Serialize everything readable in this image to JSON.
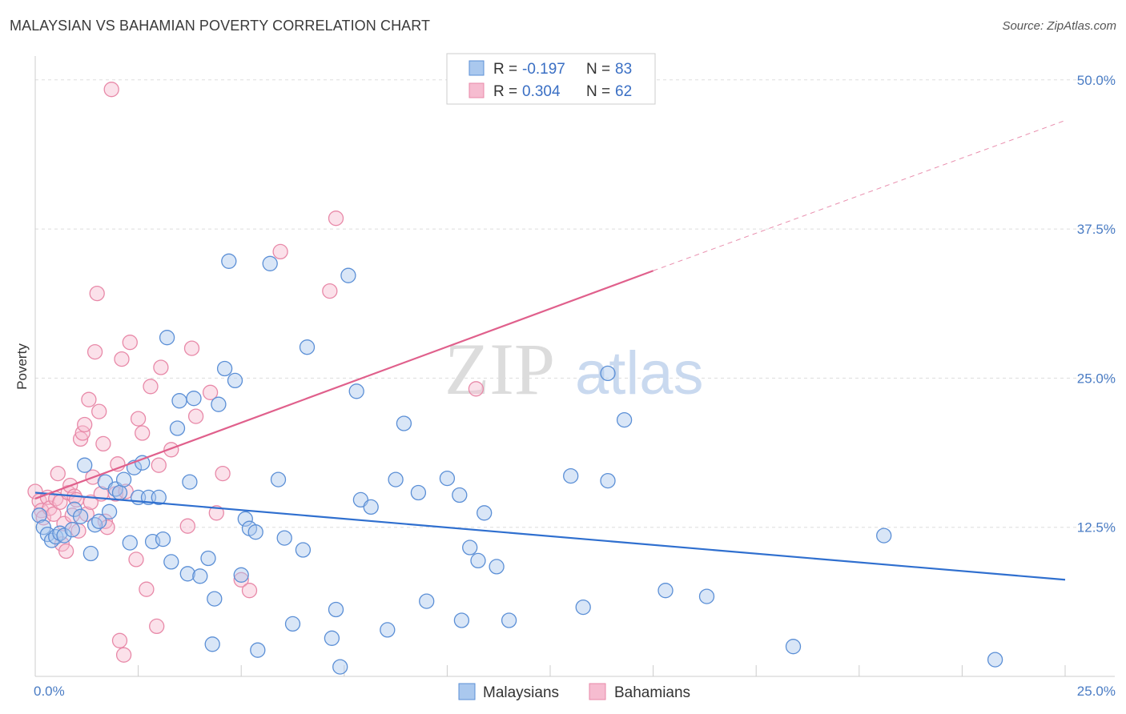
{
  "header": {
    "title": "MALAYSIAN VS BAHAMIAN POVERTY CORRELATION CHART",
    "source": "Source: ZipAtlas.com"
  },
  "colors": {
    "blue_fill": "#aac8ee",
    "blue_stroke": "#5b8fd6",
    "blue_line": "#2f6fcf",
    "pink_fill": "#f6bcd0",
    "pink_stroke": "#e889a8",
    "pink_line": "#e0608c",
    "grid": "#dddddd",
    "tick_text": "#4a7cc4"
  },
  "legend": {
    "blue": {
      "r_label": "R = ",
      "r_value": "-0.197",
      "n_label": "N = ",
      "n_value": "83"
    },
    "pink": {
      "r_label": "R = ",
      "r_value": "0.304",
      "n_label": "N = ",
      "n_value": "62"
    }
  },
  "bottom_legend": {
    "blue": "Malaysians",
    "pink": "Bahamians"
  },
  "watermark": {
    "zip": "ZIP",
    "atlas": "atlas"
  },
  "chart_data": {
    "type": "scatter",
    "xlabel": "",
    "ylabel": "Poverty",
    "xlim": [
      0,
      25
    ],
    "ylim": [
      0,
      52
    ],
    "x_tick_labels": [
      {
        "value": 0,
        "label": "0.0%"
      },
      {
        "value": 25,
        "label": "25.0%"
      }
    ],
    "y_tick_labels": [
      {
        "value": 12.5,
        "label": "12.5%"
      },
      {
        "value": 25,
        "label": "25.0%"
      },
      {
        "value": 37.5,
        "label": "37.5%"
      },
      {
        "value": 50,
        "label": "50.0%"
      }
    ],
    "y_gridlines": [
      12.5,
      25,
      37.5,
      50
    ],
    "x_minor_ticks": [
      2.5,
      5,
      7.5,
      10,
      12.5,
      15,
      17.5,
      20,
      22.5,
      25
    ],
    "series": [
      {
        "name": "Malaysians",
        "color": "blue",
        "trend": {
          "x": [
            0,
            25
          ],
          "y": [
            15.4,
            8.1
          ]
        },
        "points": [
          [
            0.1,
            13.5
          ],
          [
            0.2,
            12.5
          ],
          [
            0.3,
            11.9
          ],
          [
            0.4,
            11.4
          ],
          [
            0.5,
            11.7
          ],
          [
            0.6,
            12.0
          ],
          [
            0.7,
            11.8
          ],
          [
            0.9,
            12.3
          ],
          [
            0.95,
            14.0
          ],
          [
            1.1,
            13.4
          ],
          [
            1.2,
            17.7
          ],
          [
            1.35,
            10.3
          ],
          [
            1.45,
            12.7
          ],
          [
            1.55,
            13.0
          ],
          [
            1.7,
            16.3
          ],
          [
            1.8,
            13.8
          ],
          [
            1.95,
            15.7
          ],
          [
            2.05,
            15.4
          ],
          [
            2.15,
            16.5
          ],
          [
            2.3,
            11.2
          ],
          [
            2.4,
            17.5
          ],
          [
            2.5,
            15.0
          ],
          [
            2.6,
            17.9
          ],
          [
            2.75,
            15.0
          ],
          [
            2.85,
            11.3
          ],
          [
            3.0,
            15.0
          ],
          [
            3.1,
            11.5
          ],
          [
            3.2,
            28.4
          ],
          [
            3.3,
            9.6
          ],
          [
            3.45,
            20.8
          ],
          [
            3.5,
            23.1
          ],
          [
            3.7,
            8.6
          ],
          [
            3.75,
            16.3
          ],
          [
            3.85,
            23.3
          ],
          [
            4.0,
            8.4
          ],
          [
            4.2,
            9.9
          ],
          [
            4.3,
            2.7
          ],
          [
            4.35,
            6.5
          ],
          [
            4.45,
            22.8
          ],
          [
            4.6,
            25.8
          ],
          [
            4.7,
            34.8
          ],
          [
            4.85,
            24.8
          ],
          [
            5.0,
            8.5
          ],
          [
            5.1,
            13.2
          ],
          [
            5.2,
            12.4
          ],
          [
            5.35,
            12.1
          ],
          [
            5.4,
            2.2
          ],
          [
            5.7,
            34.6
          ],
          [
            5.9,
            16.5
          ],
          [
            6.05,
            11.6
          ],
          [
            6.25,
            4.4
          ],
          [
            6.5,
            10.6
          ],
          [
            6.6,
            27.6
          ],
          [
            7.2,
            3.2
          ],
          [
            7.3,
            5.6
          ],
          [
            7.4,
            0.8
          ],
          [
            7.6,
            33.6
          ],
          [
            7.8,
            23.9
          ],
          [
            7.9,
            14.8
          ],
          [
            8.15,
            14.2
          ],
          [
            8.55,
            3.9
          ],
          [
            8.75,
            16.5
          ],
          [
            8.95,
            21.2
          ],
          [
            9.3,
            15.4
          ],
          [
            9.5,
            6.3
          ],
          [
            10.0,
            16.6
          ],
          [
            10.3,
            15.2
          ],
          [
            10.35,
            4.7
          ],
          [
            10.55,
            10.8
          ],
          [
            10.75,
            9.7
          ],
          [
            10.9,
            13.7
          ],
          [
            11.2,
            9.2
          ],
          [
            11.5,
            4.7
          ],
          [
            13.0,
            16.8
          ],
          [
            13.3,
            5.8
          ],
          [
            13.9,
            16.4
          ],
          [
            13.9,
            25.4
          ],
          [
            14.3,
            21.5
          ],
          [
            15.3,
            7.2
          ],
          [
            16.3,
            6.7
          ],
          [
            18.4,
            2.5
          ],
          [
            20.6,
            11.8
          ],
          [
            23.3,
            1.4
          ]
        ]
      },
      {
        "name": "Bahamians",
        "color": "pink",
        "trend": {
          "x": [
            0,
            15
          ],
          "y": [
            14.9,
            34.0
          ]
        },
        "trend_extension": {
          "x": [
            15,
            25
          ],
          "y": [
            34.0,
            46.6
          ]
        },
        "points": [
          [
            0.0,
            15.5
          ],
          [
            0.1,
            14.7
          ],
          [
            0.15,
            13.9
          ],
          [
            0.2,
            13.3
          ],
          [
            0.3,
            15.0
          ],
          [
            0.35,
            14.1
          ],
          [
            0.45,
            13.6
          ],
          [
            0.5,
            14.9
          ],
          [
            0.55,
            17.0
          ],
          [
            0.6,
            14.6
          ],
          [
            0.65,
            11.1
          ],
          [
            0.7,
            12.8
          ],
          [
            0.75,
            10.5
          ],
          [
            0.8,
            15.4
          ],
          [
            0.85,
            16.0
          ],
          [
            0.9,
            13.5
          ],
          [
            0.95,
            15.1
          ],
          [
            1.0,
            14.8
          ],
          [
            1.05,
            12.2
          ],
          [
            1.1,
            19.9
          ],
          [
            1.15,
            20.4
          ],
          [
            1.2,
            21.1
          ],
          [
            1.25,
            13.6
          ],
          [
            1.3,
            23.2
          ],
          [
            1.35,
            14.6
          ],
          [
            1.4,
            16.7
          ],
          [
            1.45,
            27.2
          ],
          [
            1.5,
            32.1
          ],
          [
            1.55,
            22.2
          ],
          [
            1.6,
            15.3
          ],
          [
            1.65,
            19.5
          ],
          [
            1.7,
            13.0
          ],
          [
            1.75,
            12.5
          ],
          [
            1.85,
            49.2
          ],
          [
            1.95,
            15.3
          ],
          [
            2.0,
            17.8
          ],
          [
            2.05,
            3.0
          ],
          [
            2.1,
            26.6
          ],
          [
            2.15,
            1.8
          ],
          [
            2.2,
            15.5
          ],
          [
            2.3,
            28.0
          ],
          [
            2.45,
            9.8
          ],
          [
            2.5,
            21.6
          ],
          [
            2.6,
            20.4
          ],
          [
            2.7,
            7.3
          ],
          [
            2.8,
            24.3
          ],
          [
            2.95,
            4.2
          ],
          [
            3.0,
            17.7
          ],
          [
            3.05,
            25.9
          ],
          [
            3.3,
            19.0
          ],
          [
            3.7,
            12.6
          ],
          [
            3.8,
            27.5
          ],
          [
            3.9,
            21.8
          ],
          [
            4.25,
            23.8
          ],
          [
            4.4,
            13.7
          ],
          [
            4.55,
            17.0
          ],
          [
            5.0,
            8.1
          ],
          [
            5.2,
            7.2
          ],
          [
            5.95,
            35.6
          ],
          [
            7.15,
            32.3
          ],
          [
            7.3,
            38.4
          ],
          [
            10.7,
            24.1
          ]
        ]
      }
    ]
  }
}
